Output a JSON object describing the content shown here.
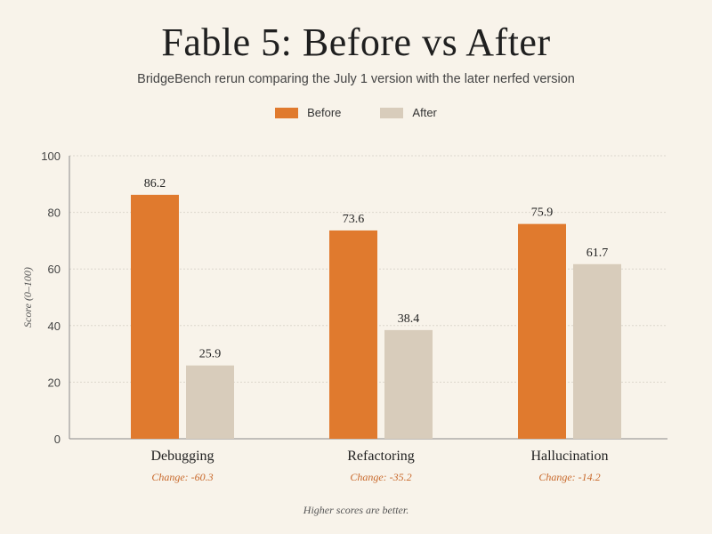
{
  "chart_data": {
    "type": "bar",
    "title": "Fable 5: Before vs After",
    "subtitle": "BridgeBench rerun comparing the July 1 version with the later nerfed version",
    "ylabel": "Score (0–100)",
    "xlabel": "",
    "ylim": [
      0,
      100
    ],
    "yticks": [
      0,
      20,
      40,
      60,
      80,
      100
    ],
    "grid": true,
    "legend_position": "top-center",
    "categories": [
      "Debugging",
      "Refactoring",
      "Hallucination"
    ],
    "series": [
      {
        "name": "Before",
        "color": "#e07a2e",
        "values": [
          86.2,
          73.6,
          75.9
        ],
        "labels": [
          "86.2",
          "73.6",
          "75.9"
        ]
      },
      {
        "name": "After",
        "color": "#d8ccbb",
        "values": [
          25.9,
          38.4,
          61.7
        ],
        "labels": [
          "25.9",
          "38.4",
          "61.7"
        ]
      }
    ],
    "change_labels": [
      "Change: -60.3",
      "Change: -35.2",
      "Change: -14.2"
    ],
    "footnote": "Higher scores are better."
  },
  "colors": {
    "change_text": "#c8682a",
    "axis": "#8a8a8a",
    "grid": "#dcd7cd"
  }
}
